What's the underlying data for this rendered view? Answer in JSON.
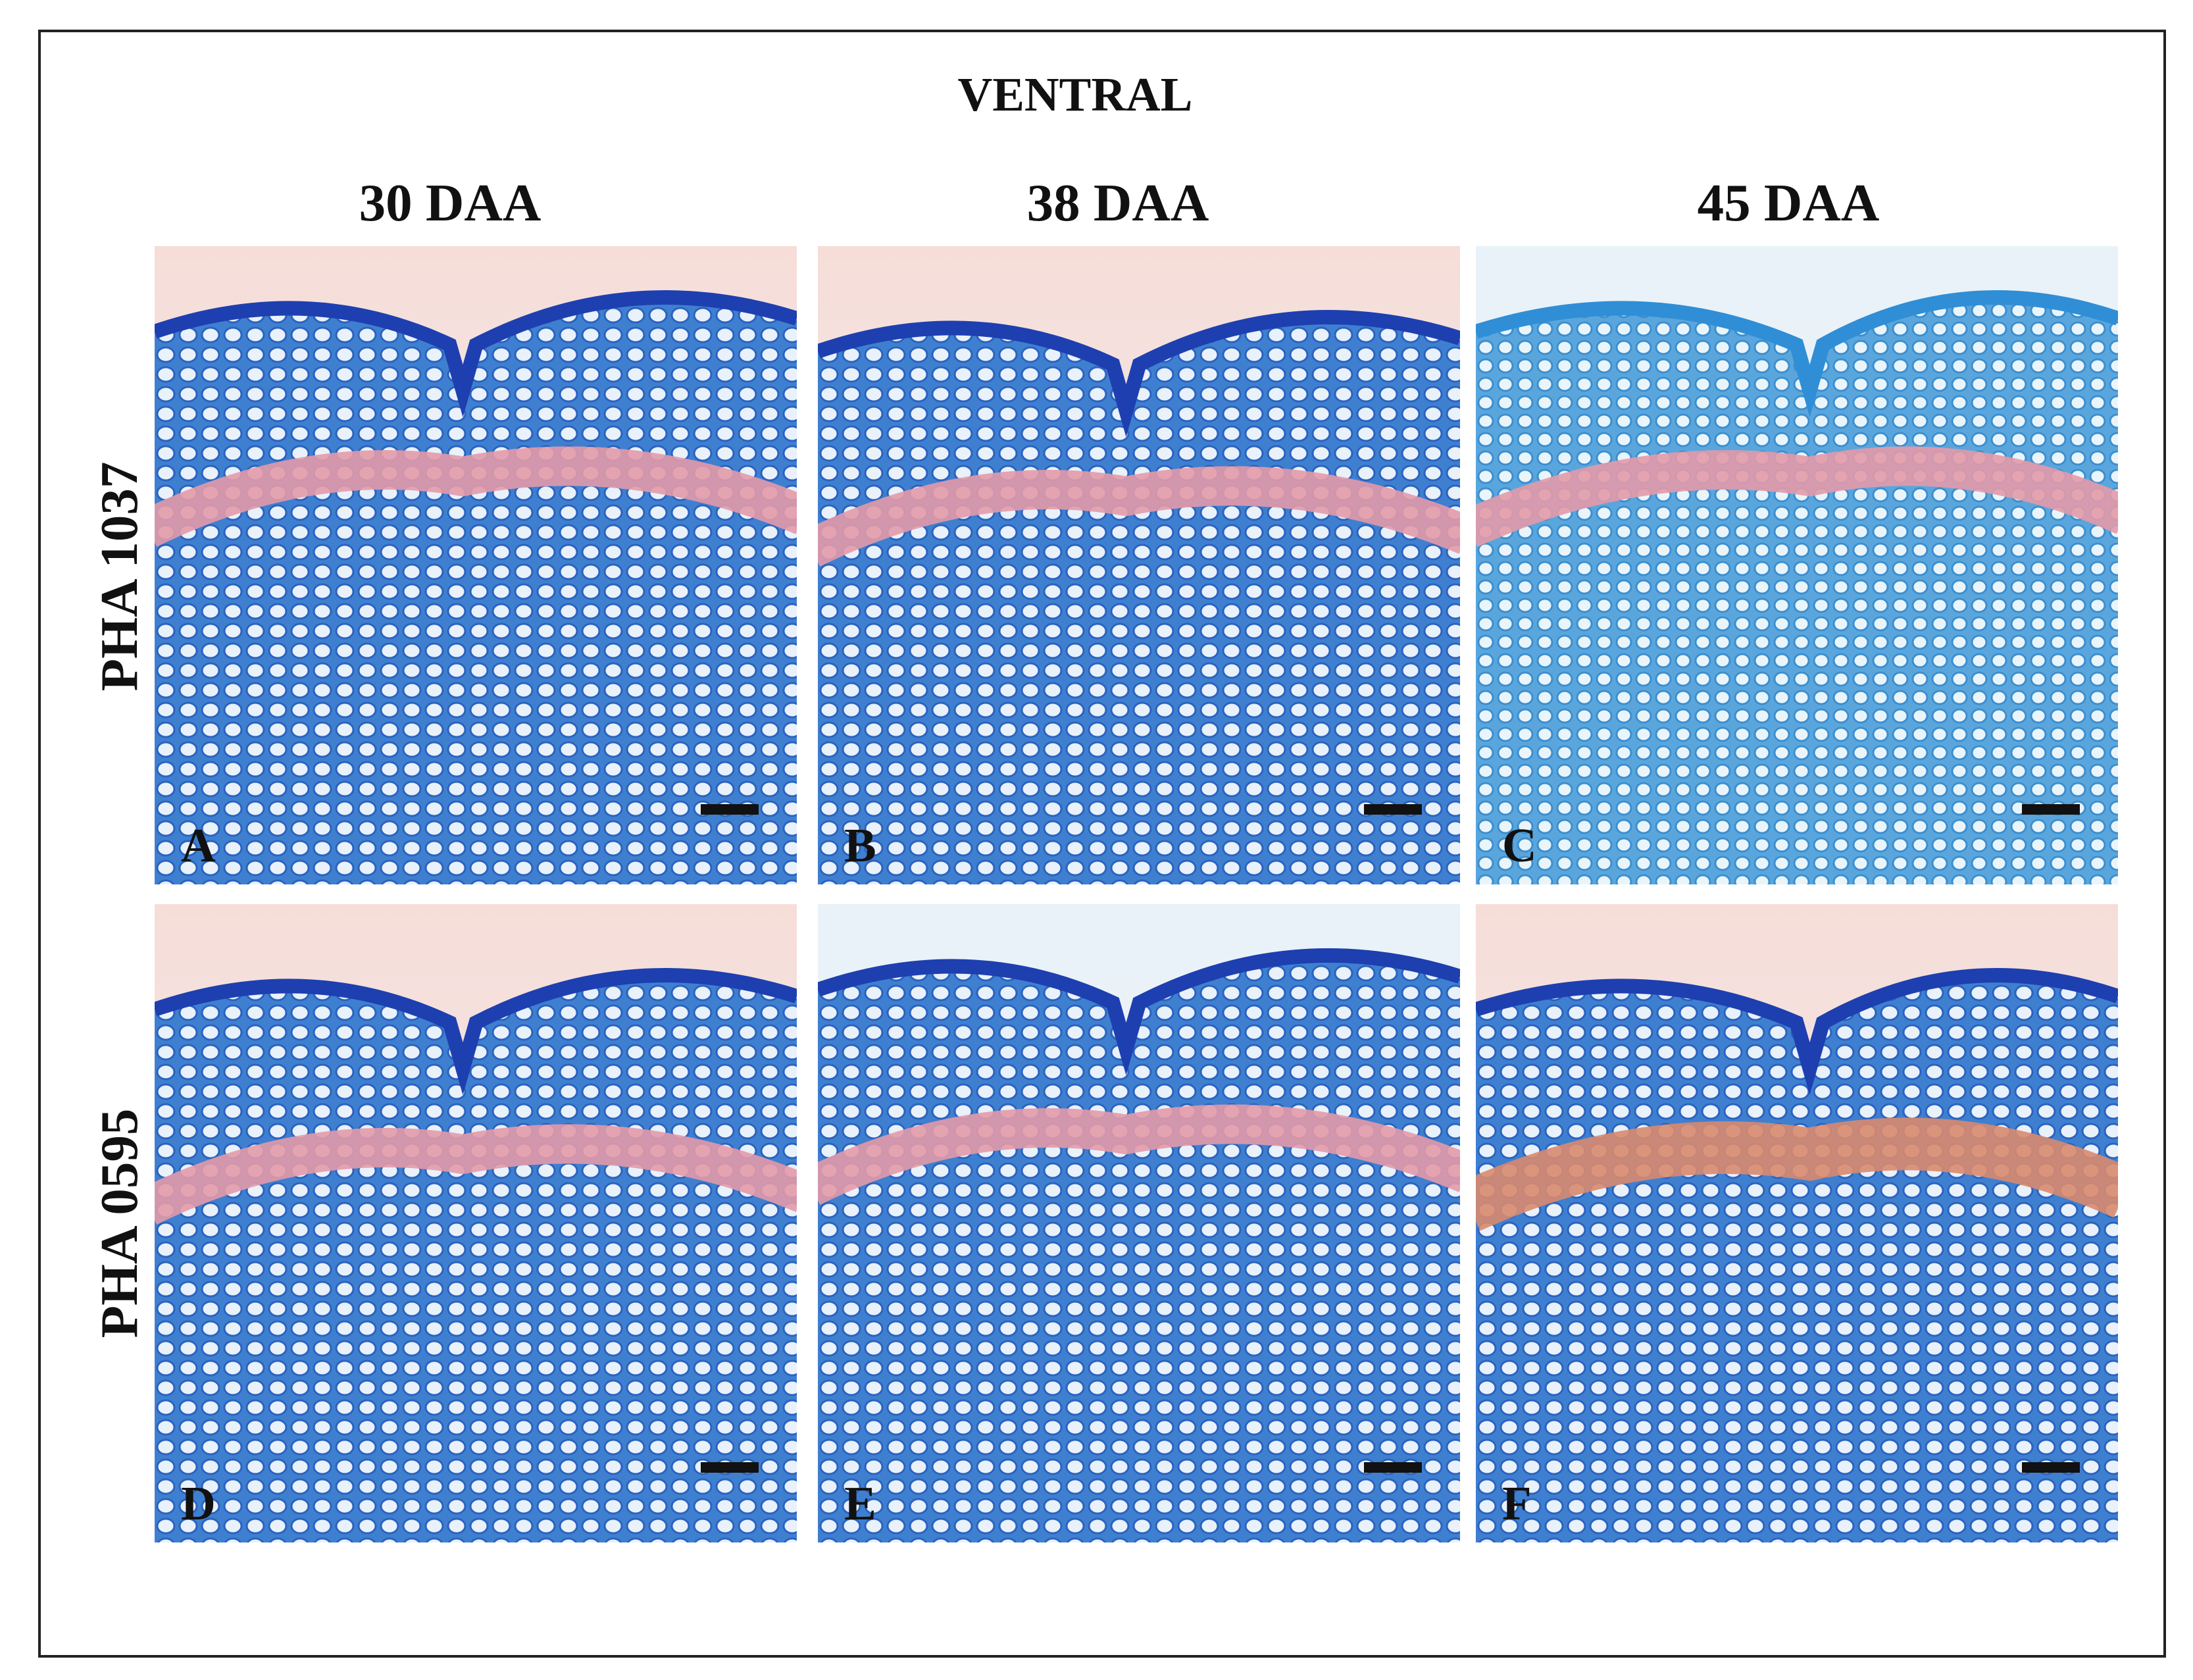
{
  "figure": {
    "title": "VENTRAL",
    "columns": [
      "30 DAA",
      "38 DAA",
      "45 DAA"
    ],
    "rows": [
      "PHA 1037",
      "PHA 0595"
    ],
    "panels": [
      "A",
      "B",
      "C",
      "D",
      "E",
      "F"
    ]
  }
}
